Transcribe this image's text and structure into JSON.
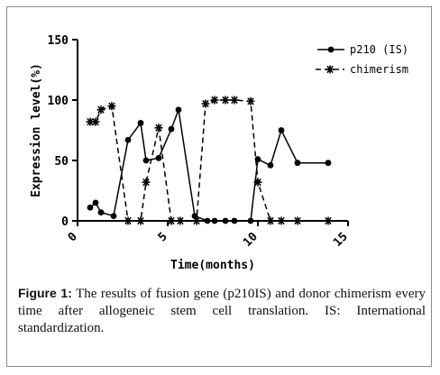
{
  "figure": {
    "caption_label": "Figure 1:",
    "caption_text": " The results of fusion gene (p210IS) and donor chimerism every time after allogeneic stem cell translation. IS: International standardization."
  },
  "chart_data": {
    "type": "line",
    "xlabel": "Time(months)",
    "ylabel": "Expression level(%)",
    "xlim": [
      0,
      15
    ],
    "ylim": [
      0,
      150
    ],
    "xticks": [
      0,
      5,
      10,
      15
    ],
    "yticks": [
      0,
      50,
      100,
      150
    ],
    "legend_position": "top-right",
    "series": [
      {
        "name": "p210 (IS)",
        "marker": "circle",
        "line": "solid",
        "color": "#000000",
        "x": [
          0.7,
          1.0,
          1.3,
          2.0,
          2.8,
          3.5,
          3.8,
          4.5,
          5.2,
          5.6,
          6.5,
          7.2,
          7.6,
          8.2,
          8.7,
          9.6,
          10.0,
          10.7,
          11.3,
          12.2,
          13.9
        ],
        "y": [
          11,
          15,
          7,
          4,
          67,
          81,
          50,
          52,
          76,
          92,
          4,
          0,
          0,
          0,
          0,
          0,
          51,
          46,
          75,
          48,
          48
        ]
      },
      {
        "name": "chimerism",
        "marker": "asterisk",
        "line": "dashed",
        "color": "#000000",
        "x": [
          0.7,
          1.0,
          1.3,
          1.9,
          2.8,
          3.5,
          3.8,
          4.5,
          5.2,
          5.7,
          6.6,
          7.1,
          7.6,
          8.2,
          8.7,
          9.6,
          10.0,
          10.7,
          11.3,
          12.2,
          13.9
        ],
        "y": [
          82,
          82,
          92,
          95,
          0,
          0,
          32,
          77,
          0,
          0,
          0,
          97,
          100,
          100,
          100,
          99,
          32,
          0,
          0,
          0,
          0
        ]
      }
    ]
  }
}
